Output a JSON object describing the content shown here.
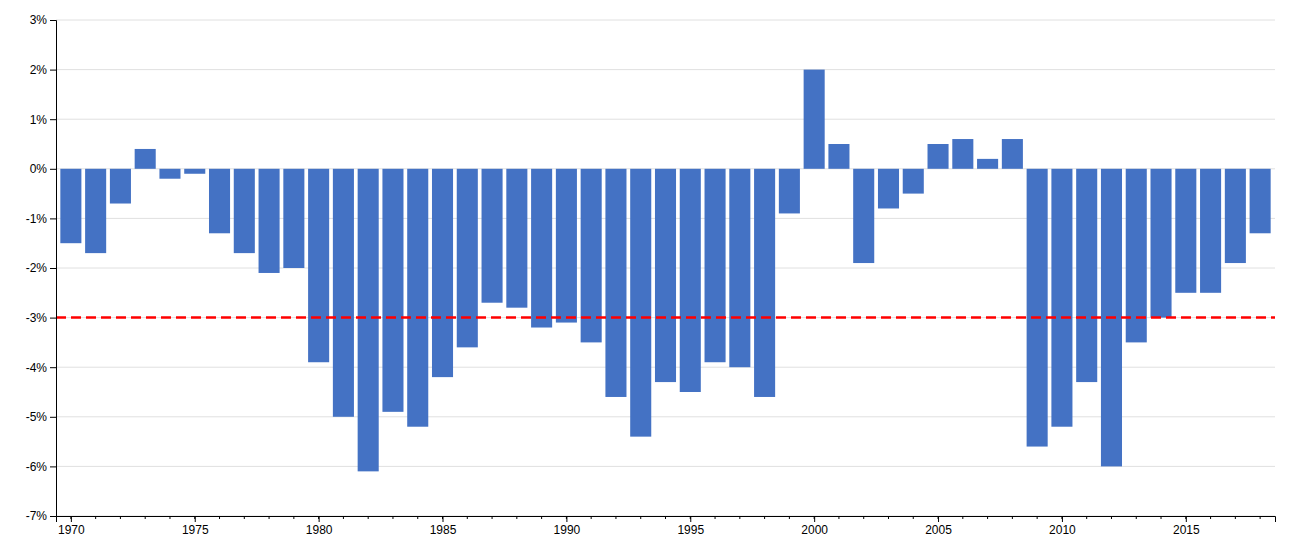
{
  "chart_data": {
    "type": "bar",
    "x": [
      1970,
      1971,
      1972,
      1973,
      1974,
      1975,
      1976,
      1977,
      1978,
      1979,
      1980,
      1981,
      1982,
      1983,
      1984,
      1985,
      1986,
      1987,
      1988,
      1989,
      1990,
      1991,
      1992,
      1993,
      1994,
      1995,
      1996,
      1997,
      1998,
      1999,
      2000,
      2001,
      2002,
      2003,
      2004,
      2005,
      2006,
      2007,
      2008,
      2009,
      2010,
      2011,
      2012,
      2013,
      2014,
      2015,
      2016,
      2017,
      2018
    ],
    "values": [
      -1.5,
      -1.7,
      -0.7,
      0.4,
      -0.2,
      -0.1,
      -1.3,
      -1.7,
      -2.1,
      -2.0,
      -3.9,
      -5.0,
      -6.1,
      -4.9,
      -5.2,
      -4.2,
      -3.6,
      -2.7,
      -2.8,
      -3.2,
      -3.1,
      -3.5,
      -4.6,
      -5.4,
      -4.3,
      -4.5,
      -3.9,
      -4.0,
      -4.6,
      -0.9,
      2.0,
      0.5,
      -1.9,
      -0.8,
      -0.5,
      0.5,
      0.6,
      0.2,
      0.6,
      -5.6,
      -5.2,
      -4.3,
      -6.0,
      -3.5,
      -3.0,
      -2.5,
      -2.5,
      -1.9,
      -1.3
    ],
    "color": "#4472C4",
    "reference_line": {
      "value": -3.0,
      "color": "#FF0000"
    },
    "xlim": [
      1969.4,
      2018.6
    ],
    "xticks": [
      1970,
      1975,
      1980,
      1985,
      1990,
      1995,
      2000,
      2005,
      2010,
      2015
    ],
    "ylim": [
      -7,
      3
    ],
    "yticks": [
      {
        "value": -7,
        "label": "-7%"
      },
      {
        "value": -6,
        "label": "-6%"
      },
      {
        "value": -5,
        "label": "-5%"
      },
      {
        "value": -4,
        "label": "-4%"
      },
      {
        "value": -3,
        "label": "-3%"
      },
      {
        "value": -2,
        "label": "-2%"
      },
      {
        "value": -1,
        "label": "-1%"
      },
      {
        "value": 0,
        "label": "0%"
      },
      {
        "value": 1,
        "label": "1%"
      },
      {
        "value": 2,
        "label": "2%"
      },
      {
        "value": 3,
        "label": "3%"
      }
    ],
    "grid": true
  }
}
